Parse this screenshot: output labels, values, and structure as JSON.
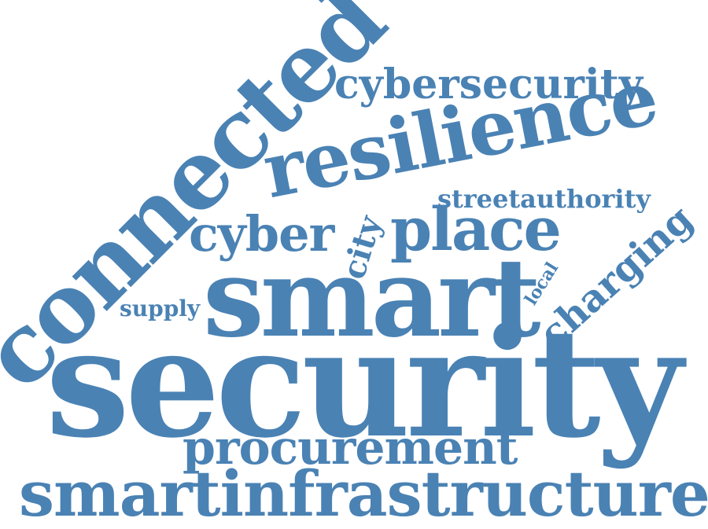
{
  "cloud": {
    "color": "#4a82b4",
    "words": {
      "security": "security",
      "smartinfrastructure": "smartinfrastructure",
      "procurement": "procurement",
      "smart": "smart",
      "connected": "connected",
      "resilience": "resilience",
      "cybersecurity": "cybersecurity",
      "streetauthority": "streetauthority",
      "cyber": "cyber",
      "place": "place",
      "city": "city",
      "charging": "charging",
      "local": "local",
      "supply": "supply"
    }
  }
}
